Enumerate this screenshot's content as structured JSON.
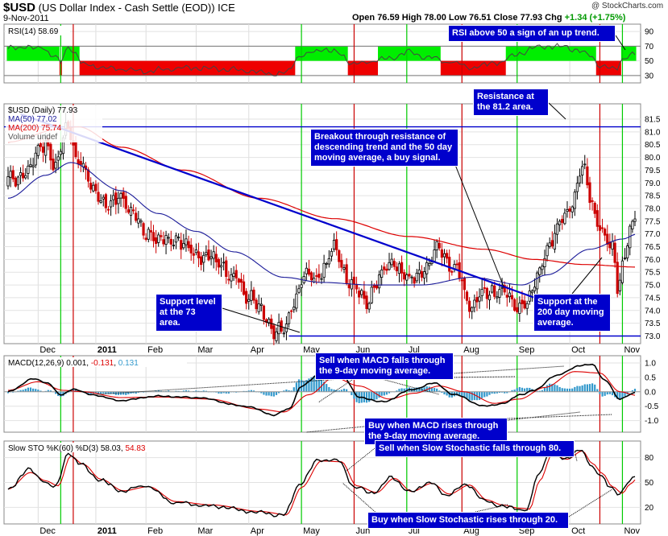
{
  "header": {
    "symbol": "$USD",
    "name": "(US Dollar Index - Cash Settle (EOD))",
    "exchange": "ICE",
    "date": "9-Nov-2011",
    "open_label": "Open",
    "open": "76.59",
    "high_label": "High",
    "high": "78.00",
    "low_label": "Low",
    "low": "76.51",
    "close_label": "Close",
    "close": "77.93",
    "chg_label": "Chg",
    "chg": "+1.34 (+1.75%)",
    "watermark": "@ StockCharts.com"
  },
  "colors": {
    "up_candle": "#000000",
    "down_candle": "#cc0000",
    "trendline": "#0000cc",
    "ma50": "#1a1a99",
    "ma200": "#dd0000",
    "buy_line": "#00cc00",
    "sell_line": "#cc0000",
    "rsi_high_fill": "#00ee00",
    "rsi_low_fill": "#ee0000",
    "histogram": "#3399cc"
  },
  "annotations": {
    "rsi": "RSI above 50 a sign of an up trend.",
    "resistance": [
      "Resistance at",
      "the 81.2 area."
    ],
    "breakout": [
      "Breakout through resistance of",
      "descending trend and the 50 day",
      "moving average, a buy signal."
    ],
    "support73": [
      "Support level",
      "at the 73 area."
    ],
    "support200": [
      "Support at the",
      "200 day moving",
      "average."
    ],
    "macd_sell": [
      "Sell when MACD falls through",
      "the 9-day moving average."
    ],
    "macd_buy": [
      "Buy when MACD rises through",
      "the 9-day moving average."
    ],
    "sto_sell": "Sell when Slow Stochastic falls through 80.",
    "sto_buy": "Buy when Slow Stochastic rises through 20."
  },
  "chart_data": {
    "type": "candlestick",
    "months": [
      "Dec",
      "2011",
      "Feb",
      "Mar",
      "Apr",
      "May",
      "Jun",
      "Jul",
      "Aug",
      "Sep",
      "Oct",
      "Nov"
    ],
    "month_start_index": [
      12,
      35,
      55,
      75,
      96,
      117,
      138,
      159,
      181,
      203,
      224,
      245
    ],
    "sessions": 251,
    "buy_signal_index": [
      21,
      117,
      159,
      203,
      245
    ],
    "sell_signal_index": [
      26,
      138,
      181,
      236
    ],
    "price_panel": {
      "legend": {
        "price": "$USD (Daily) 77.93",
        "ma50": "MA(50) 77.02",
        "ma200": "MA(200) 75.74",
        "volume": "Volume undef"
      },
      "ylim": [
        72.7,
        82.1
      ],
      "yticks": [
        73.0,
        73.5,
        74.0,
        74.5,
        75.0,
        75.5,
        76.0,
        76.5,
        77.0,
        77.5,
        78.0,
        78.5,
        79.0,
        79.5,
        80.0,
        80.5,
        81.0,
        81.5
      ],
      "resistance": 81.2,
      "support": 73.0,
      "trendline": {
        "x": [
          5,
          210
        ],
        "y": [
          81.7,
          74.5
        ]
      },
      "close_anchors": [
        [
          0,
          79.0
        ],
        [
          8,
          79.6
        ],
        [
          15,
          80.6
        ],
        [
          19,
          79.6
        ],
        [
          24,
          81.3
        ],
        [
          28,
          79.8
        ],
        [
          34,
          78.8
        ],
        [
          40,
          78.0
        ],
        [
          45,
          78.6
        ],
        [
          49,
          77.8
        ],
        [
          55,
          77.1
        ],
        [
          60,
          76.6
        ],
        [
          65,
          76.9
        ],
        [
          70,
          76.5
        ],
        [
          78,
          76.1
        ],
        [
          84,
          75.9
        ],
        [
          90,
          75.2
        ],
        [
          96,
          74.6
        ],
        [
          102,
          73.8
        ],
        [
          106,
          73.3
        ],
        [
          110,
          73.1
        ],
        [
          114,
          74.4
        ],
        [
          118,
          75.5
        ],
        [
          122,
          75.1
        ],
        [
          126,
          75.8
        ],
        [
          130,
          76.3
        ],
        [
          136,
          75.2
        ],
        [
          142,
          74.3
        ],
        [
          148,
          75.3
        ],
        [
          154,
          75.9
        ],
        [
          160,
          75.1
        ],
        [
          168,
          75.8
        ],
        [
          172,
          76.4
        ],
        [
          178,
          75.7
        ],
        [
          184,
          74.3
        ],
        [
          190,
          74.6
        ],
        [
          196,
          74.8
        ],
        [
          202,
          74.1
        ],
        [
          206,
          74.3
        ],
        [
          210,
          74.9
        ],
        [
          214,
          76.3
        ],
        [
          218,
          76.9
        ],
        [
          222,
          77.6
        ],
        [
          226,
          78.5
        ],
        [
          229,
          79.6
        ],
        [
          232,
          78.4
        ],
        [
          235,
          77.6
        ],
        [
          238,
          76.8
        ],
        [
          241,
          76.4
        ],
        [
          243,
          75.0
        ],
        [
          245,
          75.8
        ],
        [
          248,
          77.0
        ],
        [
          251,
          77.9
        ]
      ],
      "ma50_anchors": [
        [
          0,
          78.4
        ],
        [
          15,
          79.3
        ],
        [
          25,
          79.8
        ],
        [
          45,
          78.7
        ],
        [
          60,
          77.8
        ],
        [
          75,
          77.1
        ],
        [
          90,
          76.3
        ],
        [
          110,
          75.3
        ],
        [
          125,
          75.1
        ],
        [
          145,
          75.0
        ],
        [
          165,
          75.0
        ],
        [
          185,
          75.3
        ],
        [
          205,
          75.0
        ],
        [
          215,
          75.4
        ],
        [
          232,
          76.4
        ],
        [
          245,
          76.8
        ],
        [
          251,
          77.0
        ]
      ],
      "ma200_anchors": [
        [
          0,
          80.6
        ],
        [
          20,
          81.1
        ],
        [
          28,
          81.2
        ],
        [
          45,
          80.4
        ],
        [
          70,
          79.5
        ],
        [
          100,
          78.4
        ],
        [
          130,
          77.6
        ],
        [
          160,
          76.9
        ],
        [
          190,
          76.4
        ],
        [
          210,
          76.0
        ],
        [
          230,
          75.8
        ],
        [
          251,
          75.7
        ]
      ]
    },
    "rsi_panel": {
      "legend": "RSI(14) 58.69",
      "ylim": [
        20,
        100
      ],
      "yticks": [
        90,
        70,
        50,
        30
      ],
      "levels": [
        70,
        30
      ],
      "anchors": [
        [
          0,
          66
        ],
        [
          5,
          70
        ],
        [
          10,
          67
        ],
        [
          14,
          68
        ],
        [
          18,
          58
        ],
        [
          21,
          48
        ],
        [
          24,
          69
        ],
        [
          27,
          60
        ],
        [
          30,
          44
        ],
        [
          40,
          40
        ],
        [
          55,
          36
        ],
        [
          70,
          41
        ],
        [
          90,
          38
        ],
        [
          110,
          32
        ],
        [
          117,
          58
        ],
        [
          126,
          66
        ],
        [
          132,
          60
        ],
        [
          138,
          45
        ],
        [
          150,
          52
        ],
        [
          160,
          62
        ],
        [
          168,
          55
        ],
        [
          175,
          49
        ],
        [
          185,
          41
        ],
        [
          196,
          48
        ],
        [
          204,
          60
        ],
        [
          212,
          70
        ],
        [
          222,
          69
        ],
        [
          232,
          59
        ],
        [
          236,
          43
        ],
        [
          242,
          39
        ],
        [
          246,
          56
        ],
        [
          251,
          59
        ]
      ],
      "highlight_rule": "green above 50, red below 50"
    },
    "macd_panel": {
      "legend_name": "MACD(12,26,9)",
      "macd": "0.001",
      "signal": "-0.131",
      "hist": "0.131",
      "ylim": [
        -1.4,
        1.25
      ],
      "yticks": [
        1.0,
        0.5,
        0.0,
        -0.5,
        -1.0
      ],
      "macd_anchors": [
        [
          0,
          0.0
        ],
        [
          10,
          0.45
        ],
        [
          16,
          0.3
        ],
        [
          21,
          -0.12
        ],
        [
          26,
          0.1
        ],
        [
          33,
          -0.1
        ],
        [
          45,
          -0.3
        ],
        [
          60,
          -0.15
        ],
        [
          75,
          -0.2
        ],
        [
          95,
          -0.5
        ],
        [
          106,
          -0.8
        ],
        [
          112,
          -0.6
        ],
        [
          117,
          0.2
        ],
        [
          125,
          0.65
        ],
        [
          134,
          0.5
        ],
        [
          140,
          -0.2
        ],
        [
          150,
          -0.35
        ],
        [
          160,
          0.05
        ],
        [
          170,
          0.3
        ],
        [
          178,
          -0.1
        ],
        [
          190,
          -0.5
        ],
        [
          198,
          -0.4
        ],
        [
          204,
          -0.1
        ],
        [
          210,
          0.05
        ],
        [
          218,
          0.55
        ],
        [
          228,
          0.9
        ],
        [
          233,
          0.95
        ],
        [
          238,
          0.4
        ],
        [
          244,
          -0.25
        ],
        [
          248,
          -0.1
        ],
        [
          251,
          0.0
        ]
      ],
      "signal_anchors": [
        [
          0,
          0.05
        ],
        [
          12,
          0.35
        ],
        [
          22,
          0.05
        ],
        [
          30,
          0.0
        ],
        [
          45,
          -0.2
        ],
        [
          60,
          -0.18
        ],
        [
          80,
          -0.25
        ],
        [
          100,
          -0.6
        ],
        [
          110,
          -0.7
        ],
        [
          120,
          -0.1
        ],
        [
          130,
          0.5
        ],
        [
          140,
          0.2
        ],
        [
          152,
          -0.25
        ],
        [
          162,
          -0.05
        ],
        [
          172,
          0.2
        ],
        [
          182,
          0.0
        ],
        [
          194,
          -0.4
        ],
        [
          204,
          -0.25
        ],
        [
          214,
          0.15
        ],
        [
          226,
          0.7
        ],
        [
          236,
          0.65
        ],
        [
          244,
          0.0
        ],
        [
          251,
          -0.13
        ]
      ]
    },
    "sto_panel": {
      "legend_name": "Slow STO %K(60) %D(3)",
      "k": "58.03",
      "d": "54.83",
      "ylim": [
        0,
        100
      ],
      "yticks": [
        80,
        50,
        20
      ],
      "k_anchors": [
        [
          0,
          40
        ],
        [
          8,
          66
        ],
        [
          14,
          52
        ],
        [
          19,
          44
        ],
        [
          24,
          86
        ],
        [
          29,
          72
        ],
        [
          36,
          54
        ],
        [
          45,
          40
        ],
        [
          55,
          46
        ],
        [
          66,
          26
        ],
        [
          80,
          22
        ],
        [
          100,
          14
        ],
        [
          110,
          10
        ],
        [
          116,
          47
        ],
        [
          124,
          78
        ],
        [
          132,
          76
        ],
        [
          138,
          44
        ],
        [
          146,
          38
        ],
        [
          153,
          57
        ],
        [
          160,
          38
        ],
        [
          168,
          50
        ],
        [
          175,
          35
        ],
        [
          183,
          48
        ],
        [
          190,
          28
        ],
        [
          196,
          22
        ],
        [
          203,
          18
        ],
        [
          207,
          17
        ],
        [
          211,
          56
        ],
        [
          216,
          86
        ],
        [
          222,
          78
        ],
        [
          228,
          90
        ],
        [
          232,
          72
        ],
        [
          236,
          60
        ],
        [
          240,
          44
        ],
        [
          244,
          36
        ],
        [
          247,
          50
        ],
        [
          251,
          58
        ]
      ],
      "d_anchors": [
        [
          0,
          42
        ],
        [
          9,
          62
        ],
        [
          15,
          52
        ],
        [
          20,
          46
        ],
        [
          25,
          82
        ],
        [
          30,
          72
        ],
        [
          37,
          54
        ],
        [
          46,
          40
        ],
        [
          56,
          45
        ],
        [
          67,
          27
        ],
        [
          81,
          23
        ],
        [
          101,
          15
        ],
        [
          111,
          11
        ],
        [
          117,
          44
        ],
        [
          125,
          76
        ],
        [
          133,
          75
        ],
        [
          139,
          46
        ],
        [
          147,
          38
        ],
        [
          154,
          55
        ],
        [
          161,
          39
        ],
        [
          169,
          49
        ],
        [
          176,
          36
        ],
        [
          184,
          47
        ],
        [
          191,
          29
        ],
        [
          197,
          23
        ],
        [
          204,
          19
        ],
        [
          208,
          18
        ],
        [
          212,
          52
        ],
        [
          217,
          84
        ],
        [
          223,
          78
        ],
        [
          229,
          88
        ],
        [
          233,
          73
        ],
        [
          237,
          61
        ],
        [
          241,
          45
        ],
        [
          245,
          37
        ],
        [
          248,
          48
        ],
        [
          251,
          55
        ]
      ]
    }
  }
}
